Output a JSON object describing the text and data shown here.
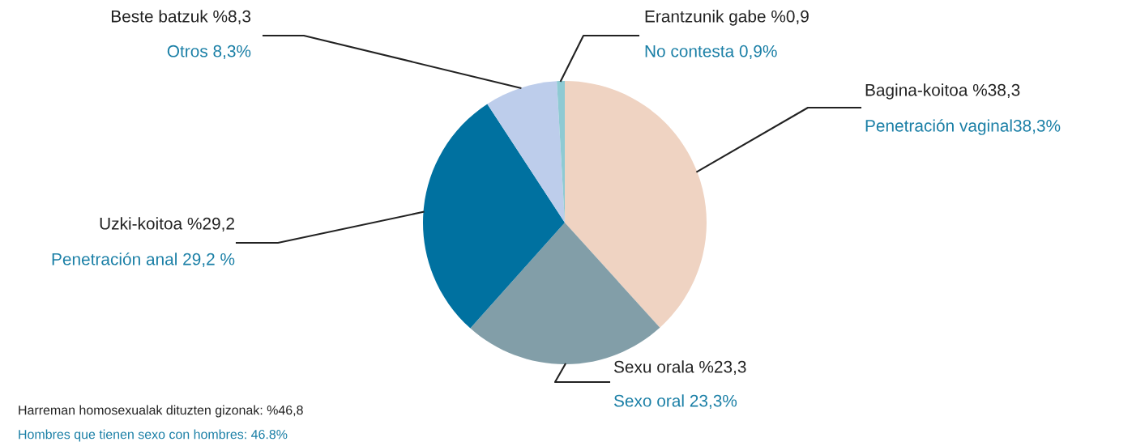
{
  "chart_data": {
    "type": "pie",
    "categories": [
      "Bagina-koitoa %38,3",
      "Sexu orala %23,3",
      "Uzki-koitoa %29,2",
      "Beste batzuk %8,3",
      "Erantzunik gabe %0,9"
    ],
    "value_labels": [
      "Penetración vaginal38,3%",
      "Sexo oral 23,3%",
      "Penetración anal 29,2 %",
      "Otros 8,3%",
      "No contesta 0,9%"
    ],
    "values": [
      38.3,
      23.3,
      29.2,
      8.3,
      0.9
    ],
    "colors": [
      "#efd3c2",
      "#829ea8",
      "#0071a0",
      "#bdcdeb",
      "#8ecad3"
    ],
    "annotations": [
      "Harreman homosexualak dituzten gizonak: %46,8",
      "Hombres que tienen sexo con hombres: 46.8%"
    ],
    "legend": false
  }
}
